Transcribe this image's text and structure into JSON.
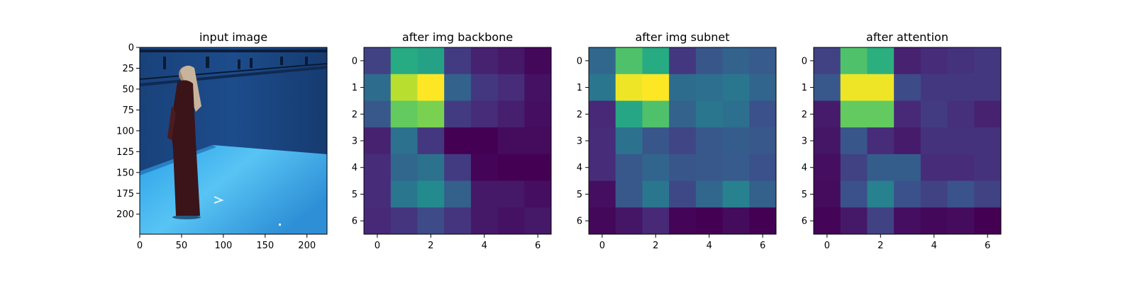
{
  "chart_data": [
    {
      "type": "image",
      "title": "input image",
      "x_ticks": [
        0,
        50,
        100,
        150,
        200
      ],
      "y_ticks": [
        0,
        25,
        50,
        75,
        100,
        125,
        150,
        175,
        200
      ],
      "xlim": [
        0,
        224
      ],
      "ylim": [
        224,
        0
      ]
    },
    {
      "type": "heatmap",
      "title": "after img backbone",
      "colormap": "viridis",
      "x_ticks": [
        0,
        2,
        4,
        6
      ],
      "y_ticks": [
        0,
        1,
        2,
        3,
        4,
        5,
        6
      ],
      "values": [
        [
          0.2,
          0.62,
          0.58,
          0.18,
          0.1,
          0.07,
          0.02
        ],
        [
          0.36,
          0.9,
          1.0,
          0.32,
          0.17,
          0.13,
          0.05
        ],
        [
          0.28,
          0.76,
          0.8,
          0.18,
          0.13,
          0.09,
          0.04
        ],
        [
          0.1,
          0.38,
          0.17,
          0.0,
          0.0,
          0.03,
          0.03
        ],
        [
          0.13,
          0.34,
          0.38,
          0.18,
          0.01,
          0.0,
          0.0
        ],
        [
          0.13,
          0.4,
          0.48,
          0.31,
          0.07,
          0.07,
          0.04
        ],
        [
          0.12,
          0.16,
          0.23,
          0.16,
          0.07,
          0.05,
          0.07
        ]
      ]
    },
    {
      "type": "heatmap",
      "title": "after img subnet",
      "colormap": "viridis",
      "x_ticks": [
        0,
        2,
        4,
        6
      ],
      "y_ticks": [
        0,
        1,
        2,
        3,
        4,
        5,
        6
      ],
      "values": [
        [
          0.34,
          0.72,
          0.62,
          0.17,
          0.27,
          0.32,
          0.29
        ],
        [
          0.4,
          0.98,
          1.0,
          0.36,
          0.37,
          0.4,
          0.33
        ],
        [
          0.12,
          0.6,
          0.72,
          0.32,
          0.4,
          0.37,
          0.25
        ],
        [
          0.13,
          0.38,
          0.27,
          0.21,
          0.28,
          0.3,
          0.28
        ],
        [
          0.13,
          0.28,
          0.33,
          0.27,
          0.28,
          0.29,
          0.25
        ],
        [
          0.04,
          0.28,
          0.4,
          0.22,
          0.34,
          0.44,
          0.31
        ],
        [
          0.02,
          0.06,
          0.12,
          0.01,
          0.0,
          0.03,
          0.0
        ]
      ]
    },
    {
      "type": "heatmap",
      "title": "after attention",
      "colormap": "viridis",
      "x_ticks": [
        0,
        2,
        4,
        6
      ],
      "y_ticks": [
        0,
        1,
        2,
        3,
        4,
        5,
        6
      ],
      "values": [
        [
          0.2,
          0.72,
          0.64,
          0.1,
          0.13,
          0.15,
          0.17
        ],
        [
          0.28,
          0.98,
          0.98,
          0.23,
          0.17,
          0.17,
          0.17
        ],
        [
          0.08,
          0.76,
          0.76,
          0.12,
          0.18,
          0.14,
          0.1
        ],
        [
          0.06,
          0.27,
          0.13,
          0.08,
          0.15,
          0.15,
          0.15
        ],
        [
          0.04,
          0.2,
          0.3,
          0.3,
          0.13,
          0.13,
          0.15
        ],
        [
          0.03,
          0.25,
          0.44,
          0.25,
          0.2,
          0.26,
          0.2
        ],
        [
          0.01,
          0.07,
          0.2,
          0.04,
          0.02,
          0.03,
          0.0
        ]
      ]
    }
  ]
}
